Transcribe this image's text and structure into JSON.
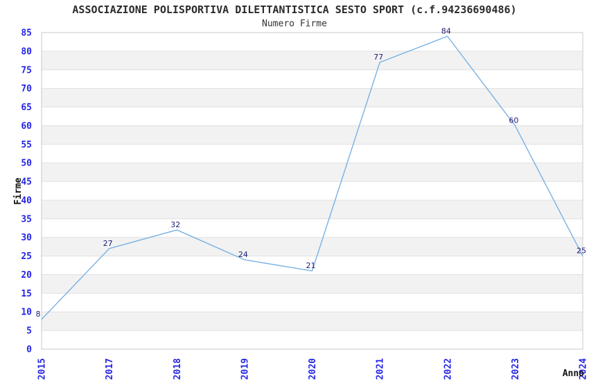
{
  "header": {
    "title": "ASSOCIAZIONE POLISPORTIVA DILETTANTISTICA SESTO SPORT (c.f.94236690486)",
    "subtitle": "Numero Firme"
  },
  "chart_data": {
    "type": "line",
    "title": "ASSOCIAZIONE POLISPORTIVA DILETTANTISTICA SESTO SPORT (c.f.94236690486)",
    "subtitle": "Numero Firme",
    "xlabel": "Anno",
    "ylabel": "Firme",
    "categories": [
      "2015",
      "2017",
      "2018",
      "2019",
      "2020",
      "2021",
      "2022",
      "2023",
      "2024"
    ],
    "values": [
      8,
      27,
      32,
      24,
      21,
      77,
      84,
      60,
      25
    ],
    "ylim": [
      0,
      85
    ],
    "ytick_step": 5,
    "yticks": [
      0,
      5,
      10,
      15,
      20,
      25,
      30,
      35,
      40,
      45,
      50,
      55,
      60,
      65,
      70,
      75,
      80,
      85
    ],
    "grid": "horizontal gridlines with alternating shaded bands every 5 units",
    "legend_position": "none",
    "colors": {
      "line": "#79B1E3",
      "tick_label": "#2525E6",
      "data_label": "#1B1B75",
      "band": "#F2F2F2",
      "gridline": "#E0E0E0",
      "border": "#C9C9C9",
      "axis_title": "#111111",
      "plot_background": "#FFFFFF"
    }
  }
}
